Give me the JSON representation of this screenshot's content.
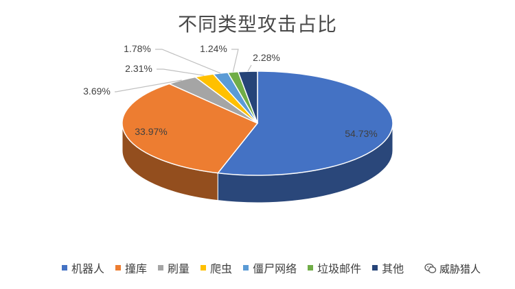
{
  "chart_data": {
    "type": "pie",
    "title": "不同类型攻击占比",
    "categories": [
      "机器人",
      "撞库",
      "刷量",
      "爬虫",
      "僵尸网络",
      "垃圾邮件",
      "其他"
    ],
    "values": [
      54.73,
      33.97,
      3.69,
      2.31,
      1.78,
      1.24,
      2.28
    ],
    "labels": [
      "54.73%",
      "33.97%",
      "3.69%",
      "2.31%",
      "1.78%",
      "1.24%",
      "2.28%"
    ],
    "colors": [
      "#4472C4",
      "#ED7D31",
      "#A5A5A5",
      "#FFC000",
      "#5B9BD5",
      "#70AD47",
      "#264478"
    ],
    "legend_position": "bottom",
    "style": "3d"
  },
  "watermark": {
    "text": "威胁猎人"
  }
}
